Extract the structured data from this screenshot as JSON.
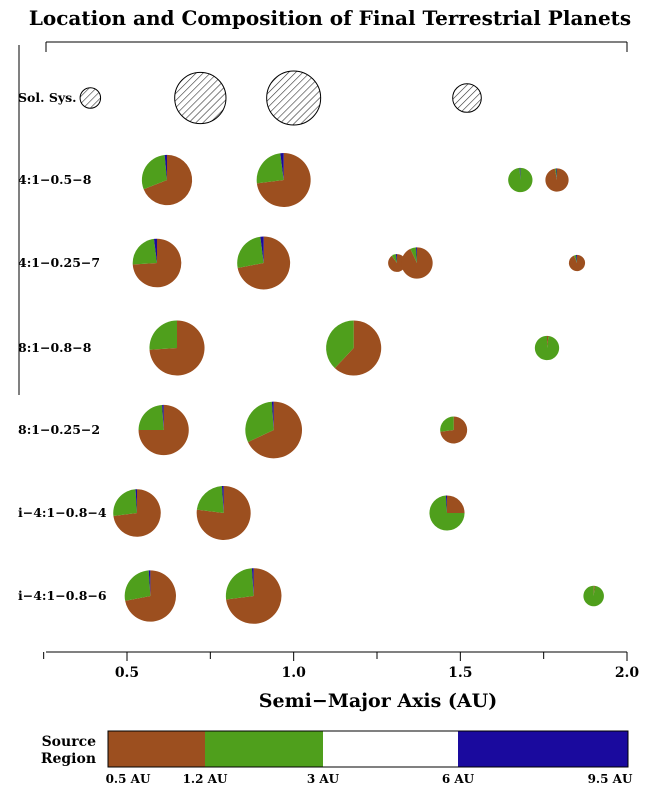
{
  "chart_data": {
    "type": "scatter",
    "title": "Location and Composition of Final Terrestrial Planets",
    "xlabel": "Semi−Major Axis (AU)",
    "xlim": [
      0.25,
      2.0
    ],
    "xticks": [
      0.5,
      1.0,
      1.5,
      2.0
    ],
    "xtick_labels": [
      "0.5",
      "1.0",
      "1.5",
      "2.0"
    ],
    "rows": [
      {
        "label": "Sol. Sys.",
        "planets": [
          {
            "a": 0.39,
            "size": 0.38,
            "solar": true
          },
          {
            "a": 0.72,
            "size": 0.95,
            "solar": true
          },
          {
            "a": 1.0,
            "size": 1.0,
            "solar": true
          },
          {
            "a": 1.52,
            "size": 0.53,
            "solar": true
          }
        ]
      },
      {
        "label": "4:1−0.5−8",
        "planets": [
          {
            "a": 0.62,
            "size": 0.93,
            "fractions": [
              0.69,
              0.295,
              0.0,
              0.015
            ]
          },
          {
            "a": 0.97,
            "size": 1.0,
            "fractions": [
              0.73,
              0.25,
              0.0,
              0.02
            ]
          },
          {
            "a": 1.68,
            "size": 0.45,
            "fractions": [
              0.0,
              0.99,
              0.0,
              0.01
            ]
          },
          {
            "a": 1.79,
            "size": 0.43,
            "fractions": [
              0.97,
              0.02,
              0.0,
              0.01
            ]
          }
        ]
      },
      {
        "label": "4:1−0.25−7",
        "planets": [
          {
            "a": 0.59,
            "size": 0.9,
            "fractions": [
              0.74,
              0.24,
              0.0,
              0.02
            ]
          },
          {
            "a": 0.91,
            "size": 0.98,
            "fractions": [
              0.72,
              0.26,
              0.0,
              0.02
            ]
          },
          {
            "a": 1.31,
            "size": 0.33,
            "fractions": [
              0.9,
              0.08,
              0.0,
              0.02
            ]
          },
          {
            "a": 1.37,
            "size": 0.58,
            "fractions": [
              0.93,
              0.06,
              0.0,
              0.01
            ]
          },
          {
            "a": 1.85,
            "size": 0.3,
            "fractions": [
              0.94,
              0.04,
              0.0,
              0.02
            ]
          }
        ]
      },
      {
        "label": "8:1−0.8−8",
        "planets": [
          {
            "a": 0.65,
            "size": 1.02,
            "fractions": [
              0.74,
              0.26,
              0.0,
              0.0
            ]
          },
          {
            "a": 1.18,
            "size": 1.02,
            "fractions": [
              0.62,
              0.38,
              0.0,
              0.0
            ]
          },
          {
            "a": 1.76,
            "size": 0.45,
            "fractions": [
              0.02,
              0.98,
              0.0,
              0.0
            ]
          }
        ]
      },
      {
        "label": "8:1−0.25−2",
        "planets": [
          {
            "a": 0.61,
            "size": 0.93,
            "fractions": [
              0.75,
              0.24,
              0.0,
              0.01
            ]
          },
          {
            "a": 0.94,
            "size": 1.05,
            "fractions": [
              0.68,
              0.31,
              0.0,
              0.01
            ]
          },
          {
            "a": 1.48,
            "size": 0.5,
            "fractions": [
              0.73,
              0.27,
              0.0,
              0.0
            ]
          }
        ]
      },
      {
        "label": "i−4:1−0.8−4",
        "planets": [
          {
            "a": 0.53,
            "size": 0.88,
            "fractions": [
              0.73,
              0.26,
              0.0,
              0.01
            ]
          },
          {
            "a": 0.79,
            "size": 1.0,
            "fractions": [
              0.77,
              0.22,
              0.0,
              0.01
            ]
          },
          {
            "a": 1.46,
            "size": 0.65,
            "fractions": [
              0.25,
              0.74,
              0.0,
              0.01
            ]
          }
        ]
      },
      {
        "label": "i−4:1−0.8−6",
        "planets": [
          {
            "a": 0.57,
            "size": 0.95,
            "fractions": [
              0.72,
              0.27,
              0.0,
              0.01
            ]
          },
          {
            "a": 0.88,
            "size": 1.03,
            "fractions": [
              0.73,
              0.26,
              0.0,
              0.01
            ]
          },
          {
            "a": 1.9,
            "size": 0.38,
            "fractions": [
              0.02,
              0.98,
              0.0,
              0.0
            ]
          }
        ]
      }
    ],
    "legend": {
      "title_line1": "Source",
      "title_line2": "Region",
      "boundaries_au": [
        0.5,
        1.2,
        3,
        6,
        9.5
      ],
      "boundary_labels": [
        "0.5 AU",
        "1.2 AU",
        "3 AU",
        "6 AU",
        "9.5 AU"
      ],
      "region_colors": [
        "#9c4f1f",
        "#4f9f1c",
        "#ffffff",
        "#1a0a9e"
      ]
    },
    "solar_hatch": true,
    "grid": false
  }
}
